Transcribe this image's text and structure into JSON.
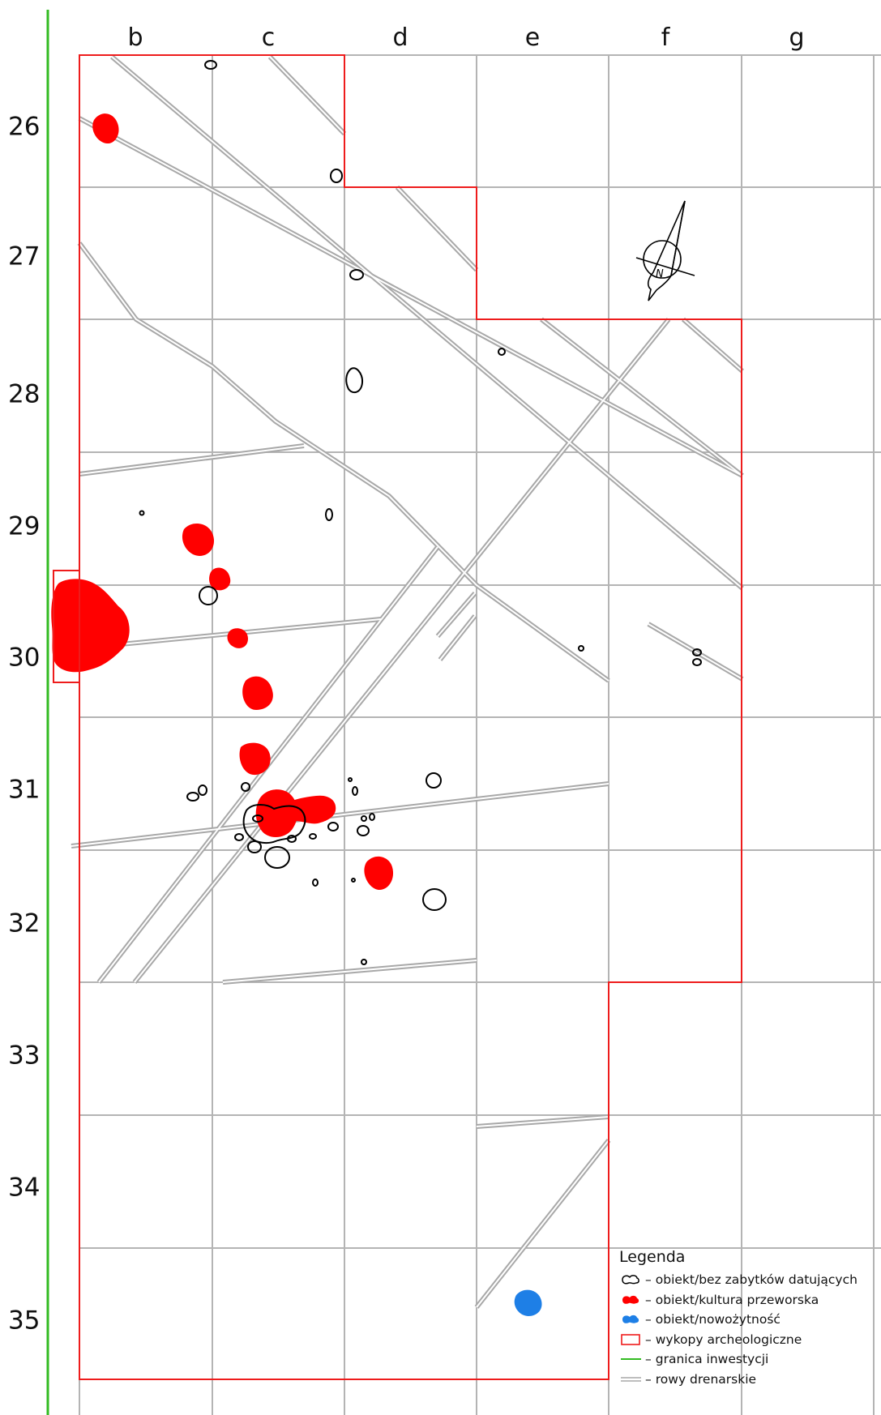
{
  "columns": [
    "b",
    "c",
    "d",
    "e",
    "f",
    "g"
  ],
  "rows": [
    "26",
    "27",
    "28",
    "29",
    "30",
    "31",
    "32",
    "33",
    "34",
    "35"
  ],
  "north_arrow": {
    "label": "N",
    "icon": "north-arrow-icon"
  },
  "colors": {
    "excavation": "#ee1c1c",
    "przeworsk": "#ff0000",
    "modern": "#1e7fe6",
    "boundary": "#33bb22",
    "grid": "#b4b4b4",
    "drainage": "#a8a8a8",
    "feature_outline": "#000000"
  },
  "legend": {
    "title": "Legenda",
    "items": [
      {
        "key": "undated",
        "icon": "feature-outline-icon",
        "label": "obiekt/bez zabytków datujących"
      },
      {
        "key": "przeworsk",
        "icon": "red-feature-icon",
        "label": "obiekt/kultura przeworska"
      },
      {
        "key": "modern",
        "icon": "blue-feature-icon",
        "label": "obiekt/nowożytność"
      },
      {
        "key": "trench",
        "icon": "red-rectangle-icon",
        "label": "wykopy archeologiczne"
      },
      {
        "key": "boundary",
        "icon": "green-line-icon",
        "label": "granica inwestycji"
      },
      {
        "key": "drainage",
        "icon": "double-gray-line-icon",
        "label": "rowy drenarskie"
      }
    ],
    "dash": "–"
  }
}
